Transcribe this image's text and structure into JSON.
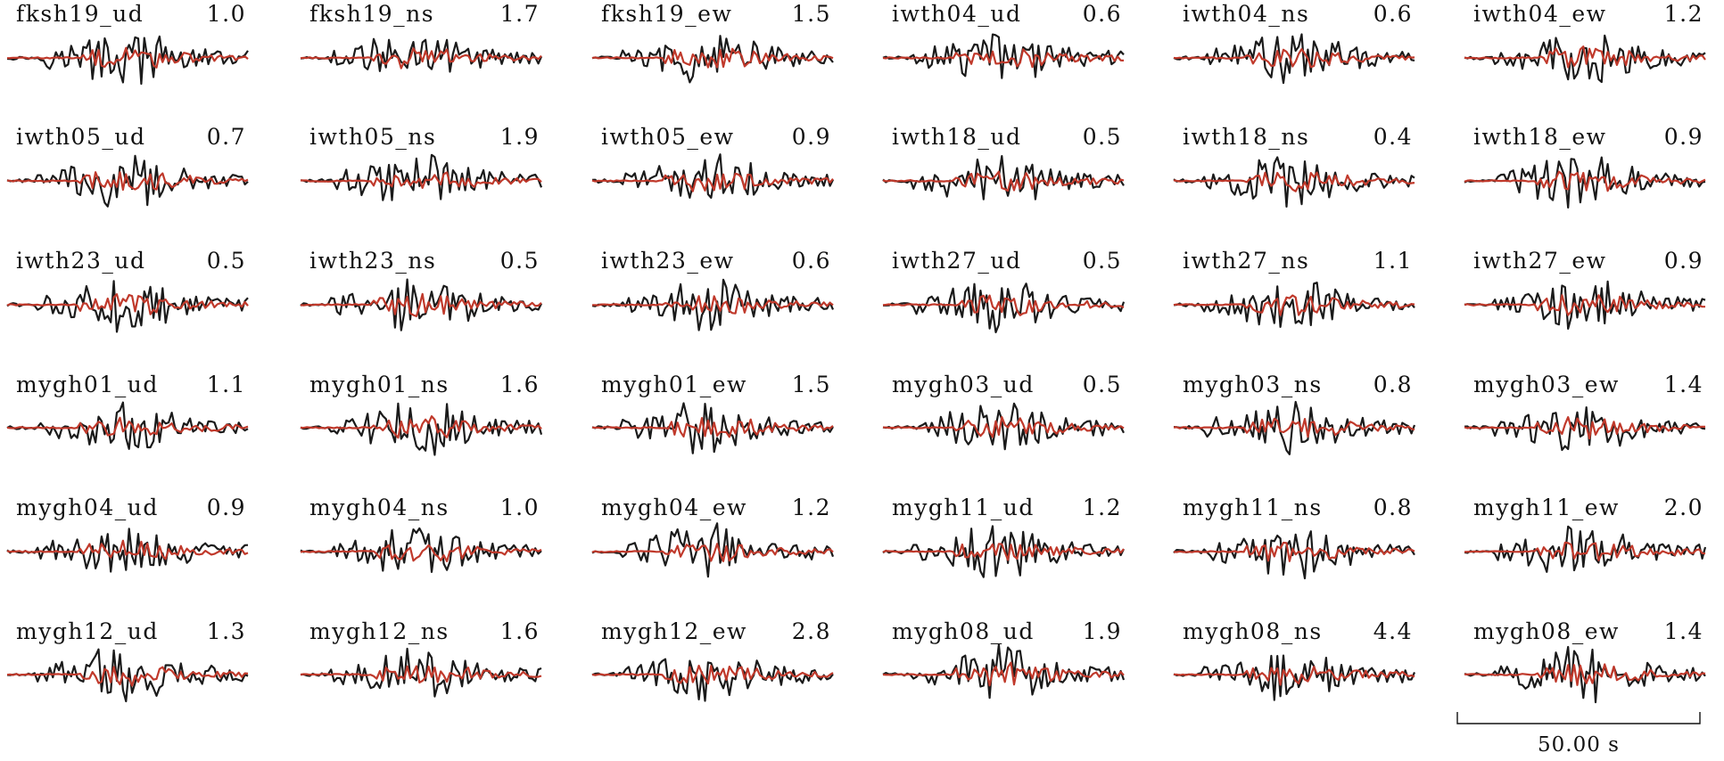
{
  "chart_data": {
    "type": "line",
    "grid": false,
    "legend": "none",
    "series_styles": {
      "observed": {
        "color": "#1a1a1a"
      },
      "synthetic": {
        "color": "#c0392b"
      }
    },
    "scale_bar": {
      "label": "50.00 s"
    },
    "panels": [
      {
        "name": "fksh19_ud",
        "amp": "1.0"
      },
      {
        "name": "fksh19_ns",
        "amp": "1.7"
      },
      {
        "name": "fksh19_ew",
        "amp": "1.5"
      },
      {
        "name": "iwth04_ud",
        "amp": "0.6"
      },
      {
        "name": "iwth04_ns",
        "amp": "0.6"
      },
      {
        "name": "iwth04_ew",
        "amp": "1.2"
      },
      {
        "name": "iwth05_ud",
        "amp": "0.7"
      },
      {
        "name": "iwth05_ns",
        "amp": "1.9"
      },
      {
        "name": "iwth05_ew",
        "amp": "0.9"
      },
      {
        "name": "iwth18_ud",
        "amp": "0.5"
      },
      {
        "name": "iwth18_ns",
        "amp": "0.4"
      },
      {
        "name": "iwth18_ew",
        "amp": "0.9"
      },
      {
        "name": "iwth23_ud",
        "amp": "0.5"
      },
      {
        "name": "iwth23_ns",
        "amp": "0.5"
      },
      {
        "name": "iwth23_ew",
        "amp": "0.6"
      },
      {
        "name": "iwth27_ud",
        "amp": "0.5"
      },
      {
        "name": "iwth27_ns",
        "amp": "1.1"
      },
      {
        "name": "iwth27_ew",
        "amp": "0.9"
      },
      {
        "name": "mygh01_ud",
        "amp": "1.1"
      },
      {
        "name": "mygh01_ns",
        "amp": "1.6"
      },
      {
        "name": "mygh01_ew",
        "amp": "1.5"
      },
      {
        "name": "mygh03_ud",
        "amp": "0.5"
      },
      {
        "name": "mygh03_ns",
        "amp": "0.8"
      },
      {
        "name": "mygh03_ew",
        "amp": "1.4"
      },
      {
        "name": "mygh04_ud",
        "amp": "0.9"
      },
      {
        "name": "mygh04_ns",
        "amp": "1.0"
      },
      {
        "name": "mygh04_ew",
        "amp": "1.2"
      },
      {
        "name": "mygh11_ud",
        "amp": "1.2"
      },
      {
        "name": "mygh11_ns",
        "amp": "0.8"
      },
      {
        "name": "mygh11_ew",
        "amp": "2.0"
      },
      {
        "name": "mygh12_ud",
        "amp": "1.3"
      },
      {
        "name": "mygh12_ns",
        "amp": "1.6"
      },
      {
        "name": "mygh12_ew",
        "amp": "2.8"
      },
      {
        "name": "mygh08_ud",
        "amp": "1.9"
      },
      {
        "name": "mygh08_ns",
        "amp": "4.4"
      },
      {
        "name": "mygh08_ew",
        "amp": "1.4"
      }
    ]
  }
}
